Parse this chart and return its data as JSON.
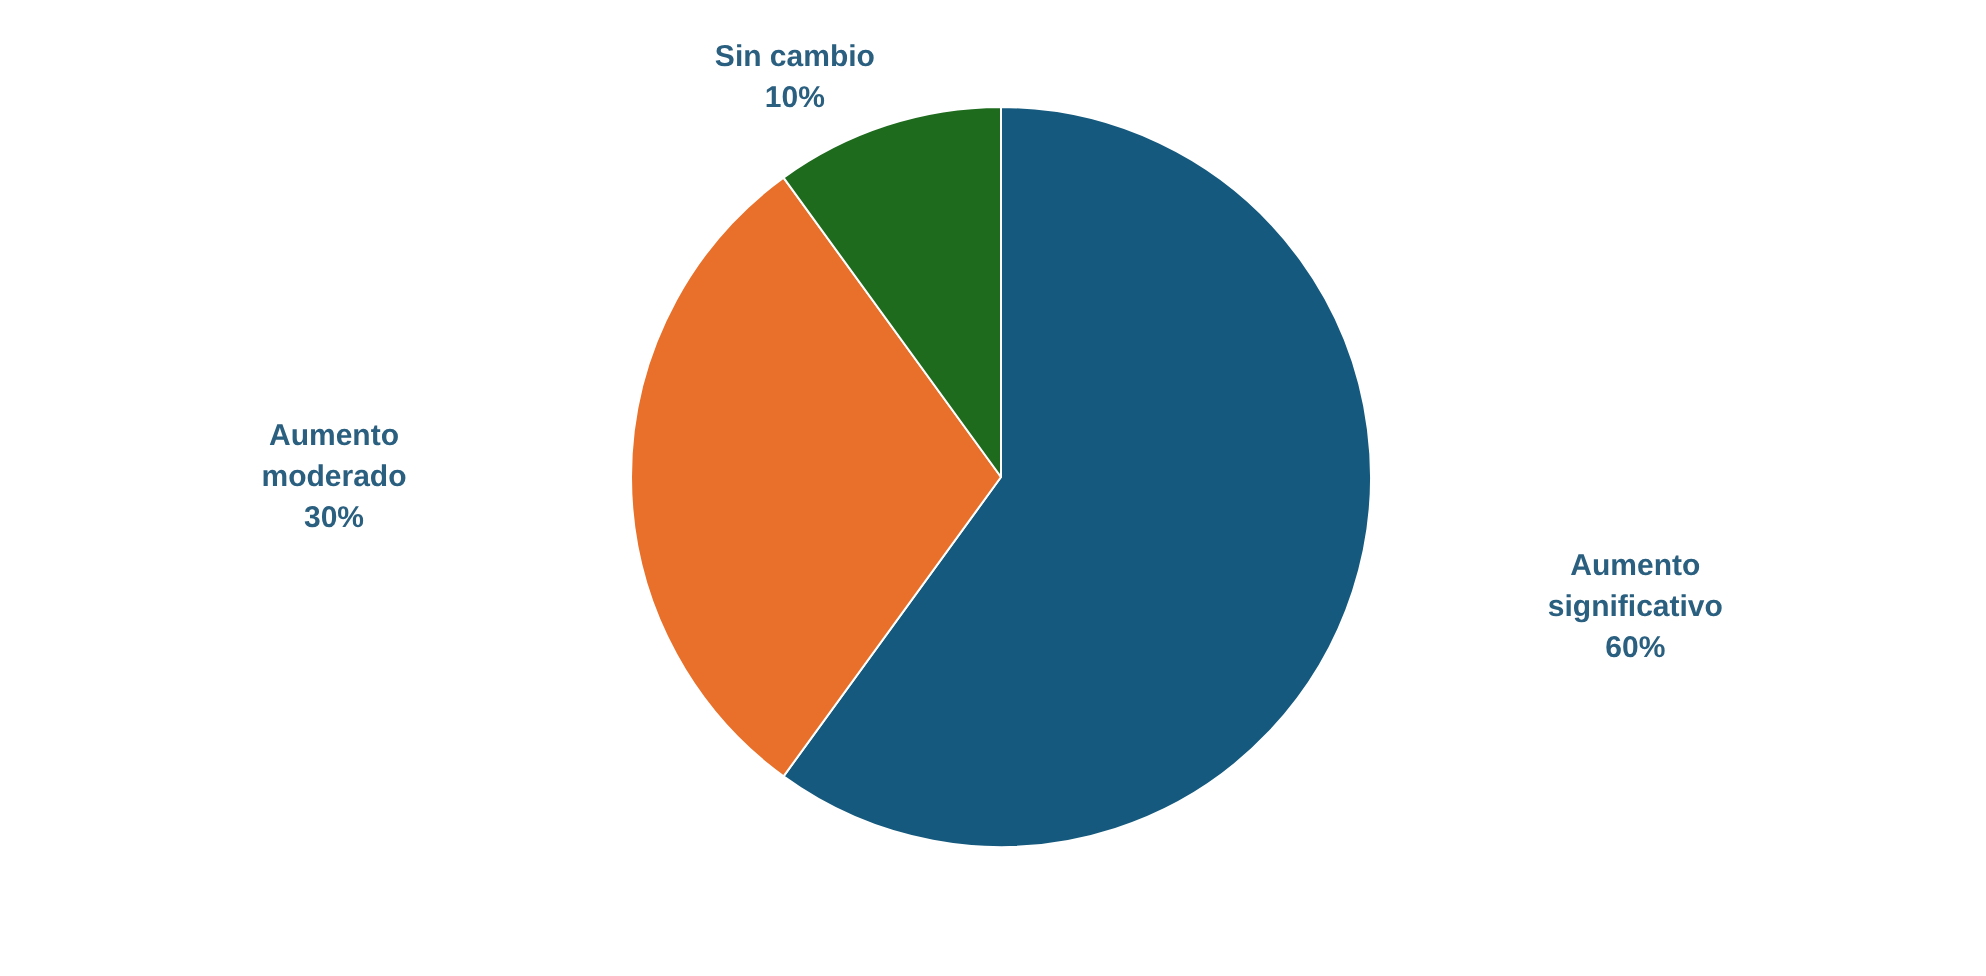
{
  "chart_data": {
    "type": "pie",
    "categories": [
      "Aumento significativo",
      "Aumento moderado",
      "Sin cambio"
    ],
    "values": [
      60,
      30,
      10
    ],
    "colors": [
      "#155a7e",
      "#e8702a",
      "#1e6b1e"
    ],
    "value_labels": [
      "60%",
      "30%",
      "10%"
    ]
  }
}
